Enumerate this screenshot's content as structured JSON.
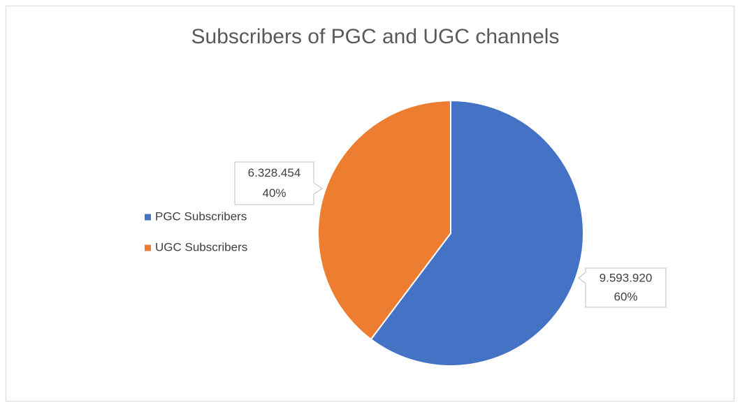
{
  "chart_data": {
    "type": "pie",
    "title": "Subscribers of PGC and UGC channels",
    "categories": [
      "PGC Subscribers",
      "UGC Subscribers"
    ],
    "values": [
      9593920,
      6328454
    ],
    "value_labels": [
      "9.593.920",
      "6.328.454"
    ],
    "percent_labels": [
      "60%",
      "40%"
    ],
    "colors": [
      "#4472c4",
      "#ed7d31"
    ],
    "legend": "left"
  }
}
